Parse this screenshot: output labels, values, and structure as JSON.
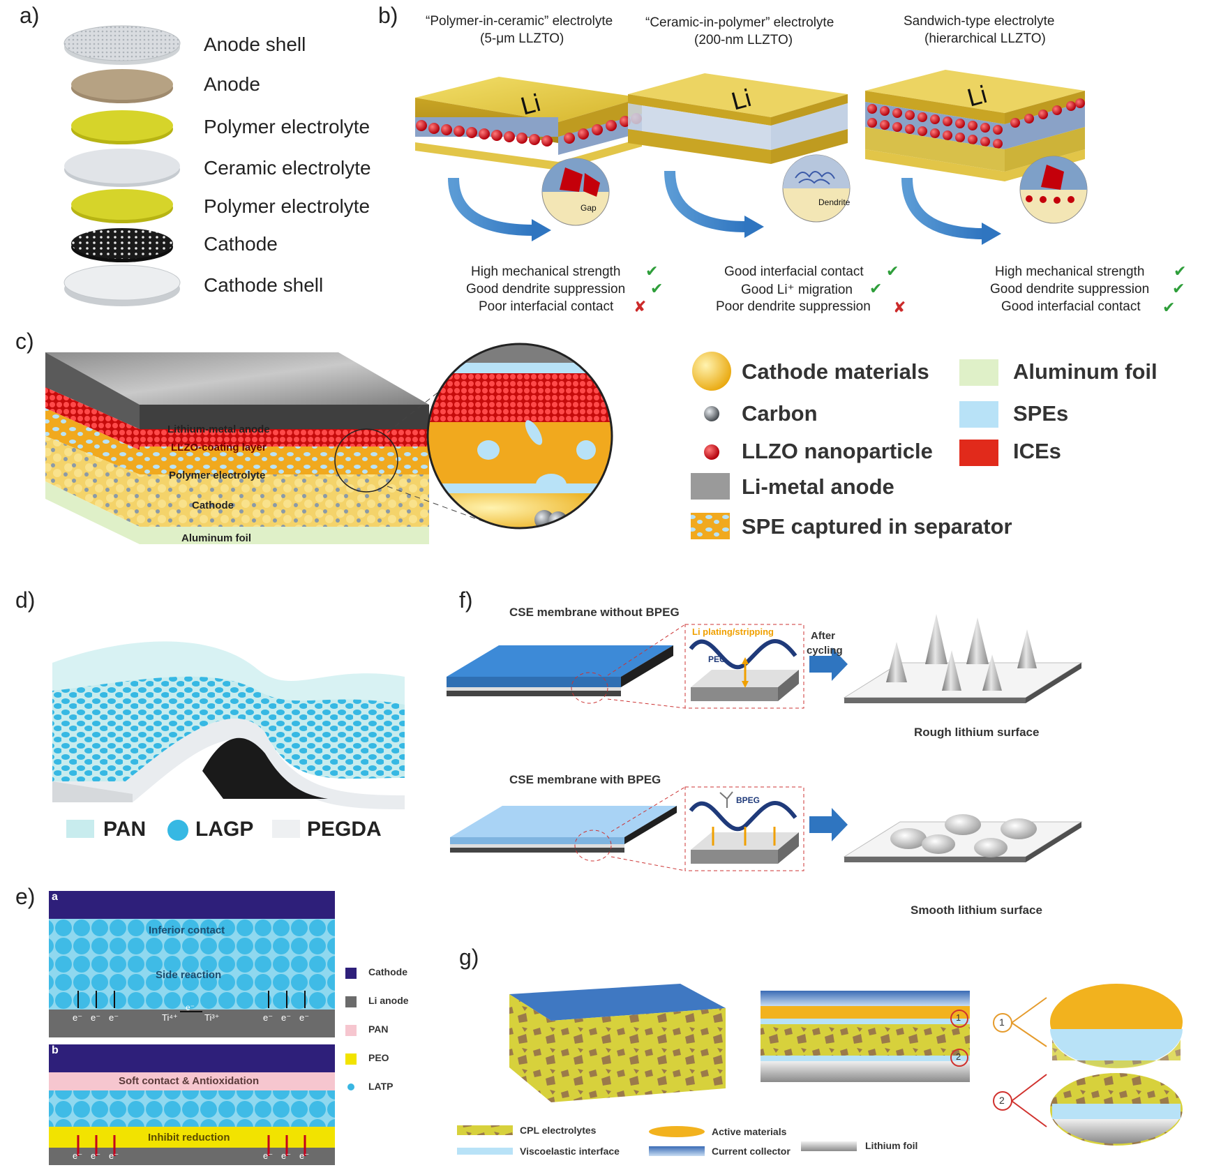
{
  "panel_labels": {
    "a": "a)",
    "b": "b)",
    "c": "c)",
    "d": "d)",
    "e": "e)",
    "f": "f)",
    "g": "g)"
  },
  "panel_a": {
    "layers": [
      "Anode shell",
      "Anode",
      "Polymer electrolyte",
      "Ceramic electrolyte",
      "Polymer electrolyte",
      "Cathode",
      "Cathode shell"
    ]
  },
  "panel_b": {
    "columns": [
      {
        "title_1": "“Polymer-in-ceramic” electrolyte",
        "title_2": "(5-μm LLZTO)",
        "li_label": "Li",
        "zoom_label": "Gap",
        "features": [
          {
            "text": "High mechanical strength",
            "mark": "✔"
          },
          {
            "text": "Good dendrite suppression",
            "mark": "✔"
          },
          {
            "text": "Poor interfacial contact",
            "mark": "✘"
          }
        ]
      },
      {
        "title_1": "“Ceramic-in-polymer” electrolyte",
        "title_2": "(200-nm LLZTO)",
        "li_label": "Li",
        "zoom_label": "Dendrite",
        "features": [
          {
            "text": "Good interfacial contact",
            "mark": "✔"
          },
          {
            "text": "Good Li⁺ migration",
            "mark": "✔"
          },
          {
            "text": "Poor dendrite suppression",
            "mark": "✘"
          }
        ]
      },
      {
        "title_1": "Sandwich-type electrolyte",
        "title_2": "(hierarchical LLZTO)",
        "li_label": "Li",
        "zoom_label": "",
        "features": [
          {
            "text": "High mechanical strength",
            "mark": "✔"
          },
          {
            "text": "Good dendrite suppression",
            "mark": "✔"
          },
          {
            "text": "Good interfacial contact",
            "mark": "✔"
          }
        ]
      }
    ]
  },
  "panel_c": {
    "layer_labels": [
      "Lithium-metal anode",
      "LLZO-coating layer",
      "Polymer electrolyte",
      "Cathode",
      "Aluminum foil"
    ],
    "legend": [
      {
        "label": "Cathode materials",
        "icon": "gold-sphere"
      },
      {
        "label": "Aluminum foil",
        "icon": "light-green-square"
      },
      {
        "label": "Carbon",
        "icon": "gray-sphere"
      },
      {
        "label": "SPEs",
        "icon": "light-blue-square"
      },
      {
        "label": "LLZO nanoparticle",
        "icon": "red-sphere"
      },
      {
        "label": "ICEs",
        "icon": "red-square"
      },
      {
        "label": "Li-metal anode",
        "icon": "gray-square"
      },
      {
        "label": "SPE captured in separator",
        "icon": "orange-blue-square"
      }
    ]
  },
  "panel_d": {
    "legend": [
      {
        "label": "PAN",
        "icon": "mint-square"
      },
      {
        "label": "LAGP",
        "icon": "blue-circle"
      },
      {
        "label": "PEGDA",
        "icon": "white-square"
      }
    ]
  },
  "panel_e": {
    "sub_a": {
      "tag": "a",
      "top_text": "Inferior contact",
      "mid_text": "Side reaction",
      "ti_left": "Ti⁴⁺",
      "ti_arrow_e": "e⁻",
      "ti_right": "Ti³⁺",
      "electron": "e⁻"
    },
    "sub_b": {
      "tag": "b",
      "top_text": "Soft contact & Antioxidation",
      "mid_text": "Inhibit reduction",
      "electron": "e⁻"
    },
    "legend": [
      {
        "label": "Cathode",
        "color": "#2e1f7a"
      },
      {
        "label": "Li anode",
        "color": "#6b6b6b"
      },
      {
        "label": "PAN",
        "color": "#f6c6cf"
      },
      {
        "label": "PEO",
        "color": "#f2e300"
      },
      {
        "label": "LATP",
        "color": "#39b6e2"
      }
    ]
  },
  "panel_f": {
    "top_title": "CSE membrane without BPEG",
    "top_zoom_label": "Li plating/stripping",
    "top_zoom_polymer": "PEO",
    "arrow_label_1": "After",
    "arrow_label_2": "cycling",
    "top_result": "Rough lithium surface",
    "bottom_title": "CSE membrane with BPEG",
    "bottom_zoom_polymer": "BPEG",
    "bottom_result": "Smooth lithium surface"
  },
  "panel_g": {
    "markers": [
      "1",
      "2"
    ],
    "legend": [
      {
        "label": "CPL electrolytes",
        "icon": "yellow-brown-pattern"
      },
      {
        "label": "Active materials",
        "icon": "orange-blob"
      },
      {
        "label": "Viscoelastic interface",
        "icon": "light-blue-bar"
      },
      {
        "label": "Current collector",
        "icon": "blue-gradient-bar"
      },
      {
        "label": "Lithium foil",
        "icon": "gray-gradient-bar"
      }
    ]
  }
}
